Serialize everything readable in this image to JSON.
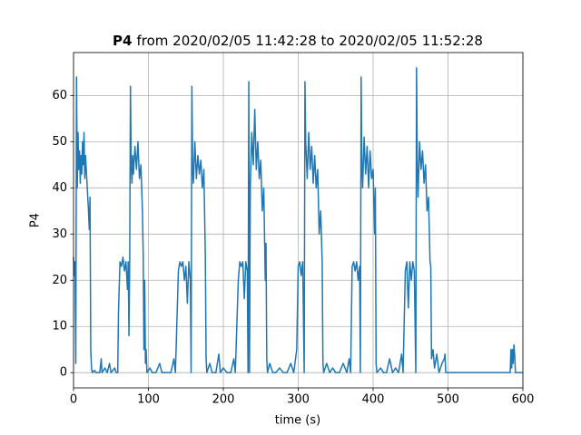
{
  "chart_data": {
    "type": "line",
    "title": [
      "P4",
      "from 2020/02/05 11:42:28 to 2020/02/05 11:52:28"
    ],
    "xlabel": "time (s)",
    "ylabel": "P4",
    "color": "#1f77b4",
    "xlim": [
      0,
      600
    ],
    "ylim": [
      -3.3,
      69.3
    ],
    "xticks": [
      0,
      100,
      200,
      300,
      400,
      500,
      600
    ],
    "yticks": [
      0,
      10,
      20,
      30,
      40,
      50,
      60
    ],
    "grid": true,
    "x": [
      0,
      1,
      2,
      3,
      4,
      5,
      6,
      7,
      8,
      9,
      10,
      11,
      12,
      13,
      14,
      15,
      16,
      17,
      18,
      19,
      20,
      21,
      22,
      23,
      24,
      25,
      28,
      30,
      35,
      37,
      38,
      42,
      45,
      48,
      50,
      55,
      57,
      59,
      60,
      62,
      64,
      66,
      68,
      70,
      72,
      73,
      74,
      75,
      76,
      77,
      78,
      79,
      80,
      82,
      84,
      86,
      88,
      90,
      92,
      93,
      94,
      95,
      96,
      97,
      98,
      102,
      105,
      110,
      115,
      118,
      125,
      130,
      134,
      136,
      140,
      142,
      144,
      146,
      148,
      150,
      152,
      154,
      156,
      157,
      158,
      159,
      160,
      162,
      164,
      166,
      168,
      170,
      172,
      174,
      176,
      177,
      178,
      182,
      185,
      190,
      194,
      196,
      200,
      205,
      210,
      214,
      216,
      220,
      222,
      224,
      226,
      228,
      230,
      232,
      233,
      234,
      235,
      236,
      238,
      240,
      242,
      244,
      246,
      248,
      250,
      252,
      254,
      256,
      257,
      258,
      259,
      262,
      266,
      270,
      275,
      280,
      285,
      290,
      294,
      298,
      300,
      302,
      304,
      306,
      308,
      309,
      310,
      312,
      314,
      316,
      318,
      320,
      322,
      324,
      326,
      328,
      330,
      332,
      333,
      334,
      338,
      342,
      346,
      350,
      355,
      360,
      365,
      368,
      370,
      372,
      374,
      376,
      378,
      380,
      382,
      383,
      384,
      385,
      386,
      388,
      390,
      392,
      394,
      396,
      398,
      400,
      402,
      403,
      404,
      405,
      410,
      414,
      418,
      422,
      426,
      430,
      434,
      438,
      440,
      443,
      445,
      447,
      449,
      451,
      453,
      455,
      457,
      458,
      459,
      460,
      462,
      464,
      466,
      468,
      470,
      472,
      474,
      476,
      477,
      478,
      480,
      482,
      485,
      488,
      492,
      495,
      496,
      497,
      583,
      584,
      585,
      586,
      587,
      588,
      589,
      590,
      600
    ],
    "values": [
      25,
      21,
      24,
      2,
      64,
      40,
      52,
      44,
      48,
      41,
      47,
      43,
      50,
      45,
      52,
      42,
      47,
      44,
      41,
      38,
      35,
      31,
      38,
      5,
      1,
      0,
      0.5,
      0,
      0,
      3,
      0,
      1,
      0,
      2,
      0,
      1,
      0,
      0,
      13,
      24,
      23,
      25,
      22,
      24,
      18,
      24,
      8,
      24,
      62,
      45,
      41,
      47,
      43,
      49,
      44,
      50,
      42,
      45,
      35,
      26,
      5,
      20,
      2,
      5,
      0,
      1,
      0,
      0,
      2,
      0,
      0,
      0,
      3,
      0,
      22,
      24,
      23,
      24,
      20,
      23,
      15,
      24,
      20,
      0,
      62,
      45,
      41,
      50,
      42,
      47,
      43,
      46,
      40,
      44,
      25,
      3,
      0,
      2,
      0,
      0,
      4,
      0,
      1,
      0,
      0,
      3,
      0,
      20,
      24,
      23,
      24,
      16,
      24,
      22,
      0,
      63,
      0,
      40,
      52,
      45,
      57,
      44,
      50,
      42,
      46,
      35,
      40,
      20,
      28,
      3,
      0,
      2,
      0,
      0,
      1,
      0,
      0,
      2,
      0,
      5,
      23,
      24,
      21,
      24,
      0,
      63,
      50,
      42,
      52,
      44,
      49,
      41,
      47,
      40,
      44,
      30,
      35,
      24,
      2,
      0,
      2,
      0,
      1,
      0,
      0,
      2,
      0,
      3,
      0,
      23,
      24,
      22,
      24,
      20,
      23,
      0,
      64,
      45,
      40,
      51,
      43,
      49,
      40,
      48,
      42,
      44,
      30,
      40,
      2,
      0,
      1,
      0,
      0,
      3,
      0,
      1,
      0,
      4,
      0,
      22,
      24,
      14,
      24,
      20,
      24,
      22,
      0,
      66,
      45,
      38,
      50,
      44,
      48,
      41,
      45,
      35,
      38,
      24,
      23,
      3,
      5,
      1,
      4,
      0,
      2,
      3,
      4,
      0,
      0,
      5,
      1,
      5,
      2,
      6,
      4,
      0,
      0
    ]
  }
}
